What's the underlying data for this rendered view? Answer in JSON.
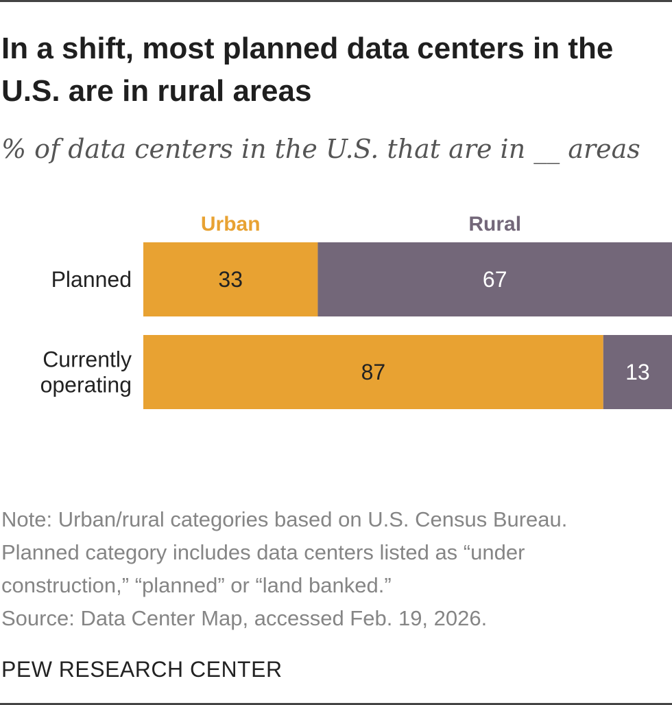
{
  "title": "In a shift, most planned data centers in the U.S. are in rural areas",
  "subtitle": "% of data centers in the U.S. that are in __ areas",
  "chart_data": {
    "type": "bar",
    "orientation": "horizontal",
    "stacked": true,
    "categories": [
      "Planned",
      "Currently operating"
    ],
    "series": [
      {
        "name": "Urban",
        "values": [
          33,
          87
        ],
        "color": "#E8A232"
      },
      {
        "name": "Rural",
        "values": [
          67,
          13
        ],
        "color": "#736779"
      }
    ],
    "xlim": [
      0,
      100
    ],
    "grid": false,
    "legend_placement": "top"
  },
  "notes": [
    "Note: Urban/rural categories based on U.S. Census Bureau.",
    "Planned category includes data centers listed as “under",
    "construction,” “planned” or “land banked.”",
    "Source: Data Center Map, accessed Feb. 19, 2026."
  ],
  "brand": "PEW RESEARCH CENTER",
  "colors": {
    "urban_text_on_bar": "#222222",
    "rural_text_on_bar": "#ffffff",
    "note_text": "#858585"
  }
}
